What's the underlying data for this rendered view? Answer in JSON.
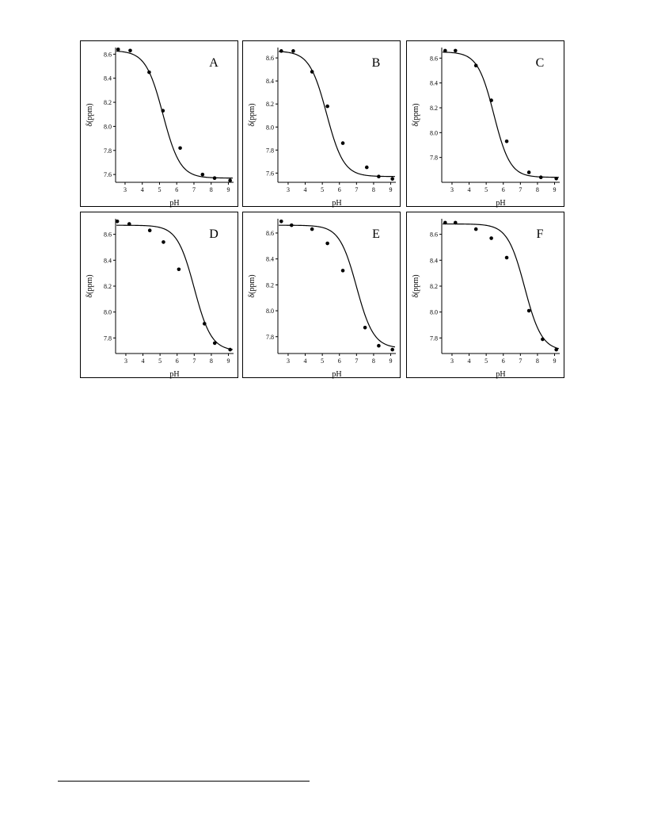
{
  "chart_data": [
    {
      "type": "scatter",
      "panel_label": "A",
      "xlabel": "pH",
      "ylabel": "δ(ppm)",
      "xticks": [
        3,
        4,
        5,
        6,
        7,
        8,
        9
      ],
      "yticks": [
        7.6,
        7.8,
        8.0,
        8.2,
        8.4,
        8.6
      ],
      "xlim": [
        2.45,
        9.3
      ],
      "ylim": [
        7.535,
        8.655
      ],
      "points": [
        [
          2.6,
          8.64
        ],
        [
          3.3,
          8.63
        ],
        [
          4.4,
          8.45
        ],
        [
          5.2,
          8.13
        ],
        [
          6.2,
          7.82
        ],
        [
          7.5,
          7.6
        ],
        [
          8.2,
          7.57
        ],
        [
          9.1,
          7.55
        ]
      ],
      "fit": {
        "upper": 8.63,
        "lower": 7.57,
        "pKa": 5.2,
        "steepness": 2.0
      }
    },
    {
      "type": "scatter",
      "panel_label": "B",
      "xlabel": "pH",
      "ylabel": "δ(ppm)",
      "xticks": [
        3,
        4,
        5,
        6,
        7,
        8,
        9
      ],
      "yticks": [
        7.6,
        7.8,
        8.0,
        8.2,
        8.4,
        8.6
      ],
      "xlim": [
        2.4,
        9.3
      ],
      "ylim": [
        7.52,
        8.69
      ],
      "points": [
        [
          2.6,
          8.66
        ],
        [
          3.3,
          8.66
        ],
        [
          4.4,
          8.48
        ],
        [
          5.3,
          8.18
        ],
        [
          6.2,
          7.86
        ],
        [
          7.6,
          7.65
        ],
        [
          8.3,
          7.57
        ],
        [
          9.1,
          7.55
        ]
      ],
      "fit": {
        "upper": 8.66,
        "lower": 7.57,
        "pKa": 5.25,
        "steepness": 2.0
      }
    },
    {
      "type": "scatter",
      "panel_label": "C",
      "xlabel": "pH",
      "ylabel": "δ(ppm)",
      "xticks": [
        3,
        4,
        5,
        6,
        7,
        8,
        9
      ],
      "yticks": [
        7.8,
        8.0,
        8.2,
        8.4,
        8.6
      ],
      "xlim": [
        2.4,
        9.3
      ],
      "ylim": [
        7.6,
        8.685
      ],
      "points": [
        [
          2.6,
          8.66
        ],
        [
          3.2,
          8.66
        ],
        [
          4.4,
          8.54
        ],
        [
          5.3,
          8.26
        ],
        [
          6.2,
          7.93
        ],
        [
          7.5,
          7.68
        ],
        [
          8.2,
          7.64
        ],
        [
          9.1,
          7.63
        ]
      ],
      "fit": {
        "upper": 8.65,
        "lower": 7.64,
        "pKa": 5.45,
        "steepness": 2.1
      }
    },
    {
      "type": "scatter",
      "panel_label": "D",
      "xlabel": "pH",
      "ylabel": "δ(ppm)",
      "xticks": [
        3,
        4,
        5,
        6,
        7,
        8,
        9
      ],
      "yticks": [
        7.8,
        8.0,
        8.2,
        8.4,
        8.6
      ],
      "xlim": [
        2.4,
        9.3
      ],
      "ylim": [
        7.68,
        8.72
      ],
      "points": [
        [
          2.5,
          8.7
        ],
        [
          3.2,
          8.68
        ],
        [
          4.4,
          8.63
        ],
        [
          5.2,
          8.54
        ],
        [
          6.1,
          8.33
        ],
        [
          7.6,
          7.91
        ],
        [
          8.2,
          7.76
        ],
        [
          9.1,
          7.71
        ]
      ],
      "fit": {
        "upper": 8.67,
        "lower": 7.7,
        "pKa": 7.0,
        "steepness": 2.0
      }
    },
    {
      "type": "scatter",
      "panel_label": "E",
      "xlabel": "pH",
      "ylabel": "δ(ppm)",
      "xticks": [
        3,
        4,
        5,
        6,
        7,
        8,
        9
      ],
      "yticks": [
        7.8,
        8.0,
        8.2,
        8.4,
        8.6
      ],
      "xlim": [
        2.4,
        9.3
      ],
      "ylim": [
        7.67,
        8.71
      ],
      "points": [
        [
          2.6,
          8.69
        ],
        [
          3.2,
          8.66
        ],
        [
          4.4,
          8.63
        ],
        [
          5.3,
          8.52
        ],
        [
          6.2,
          8.31
        ],
        [
          7.5,
          7.87
        ],
        [
          8.3,
          7.73
        ],
        [
          9.1,
          7.7
        ]
      ],
      "fit": {
        "upper": 8.66,
        "lower": 7.71,
        "pKa": 7.0,
        "steepness": 2.0
      }
    },
    {
      "type": "scatter",
      "panel_label": "F",
      "xlabel": "pH",
      "ylabel": "δ(ppm)",
      "xticks": [
        3,
        4,
        5,
        6,
        7,
        8,
        9
      ],
      "yticks": [
        7.8,
        8.0,
        8.2,
        8.4,
        8.6
      ],
      "xlim": [
        2.4,
        9.3
      ],
      "ylim": [
        7.68,
        8.72
      ],
      "points": [
        [
          2.6,
          8.69
        ],
        [
          3.2,
          8.69
        ],
        [
          4.4,
          8.64
        ],
        [
          5.3,
          8.57
        ],
        [
          6.2,
          8.42
        ],
        [
          7.5,
          8.01
        ],
        [
          8.3,
          7.79
        ],
        [
          9.1,
          7.71
        ]
      ],
      "fit": {
        "upper": 8.68,
        "lower": 7.7,
        "pKa": 7.25,
        "steepness": 2.0
      }
    }
  ]
}
